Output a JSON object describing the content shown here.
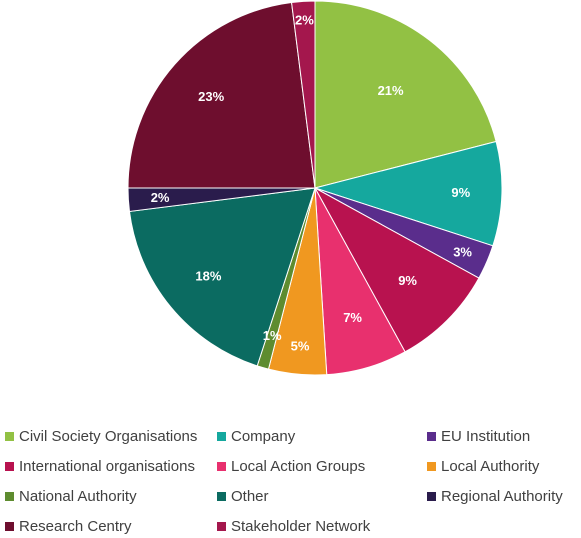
{
  "chart_data": {
    "type": "pie",
    "title": "",
    "start_angle_deg": 0,
    "direction": "clockwise",
    "legend_position": "bottom",
    "slices": [
      {
        "name": "Civil Society Organisations",
        "value": 21,
        "label": "21%",
        "color": "#92C144"
      },
      {
        "name": "Company",
        "value": 9,
        "label": "9%",
        "color": "#15A89E"
      },
      {
        "name": "EU Institution",
        "value": 3,
        "label": "3%",
        "color": "#5A2D8C"
      },
      {
        "name": "International organisations",
        "value": 9,
        "label": "9%",
        "color": "#B8124F"
      },
      {
        "name": "Local Action Groups",
        "value": 7,
        "label": "7%",
        "color": "#E8306E"
      },
      {
        "name": "Local Authority",
        "value": 5,
        "label": "5%",
        "color": "#F09820"
      },
      {
        "name": "National Authority",
        "value": 1,
        "label": "1%",
        "color": "#5E8C2F"
      },
      {
        "name": "Other",
        "value": 18,
        "label": "18%",
        "color": "#0B6B61"
      },
      {
        "name": "Regional Authority",
        "value": 2,
        "label": "2%",
        "color": "#2A1C4C"
      },
      {
        "name": "Research Centry",
        "value": 23,
        "label": "23%",
        "color": "#6E0E2E"
      },
      {
        "name": "Stakeholder Network",
        "value": 2,
        "label": "2%",
        "color": "#A4174D"
      }
    ]
  }
}
